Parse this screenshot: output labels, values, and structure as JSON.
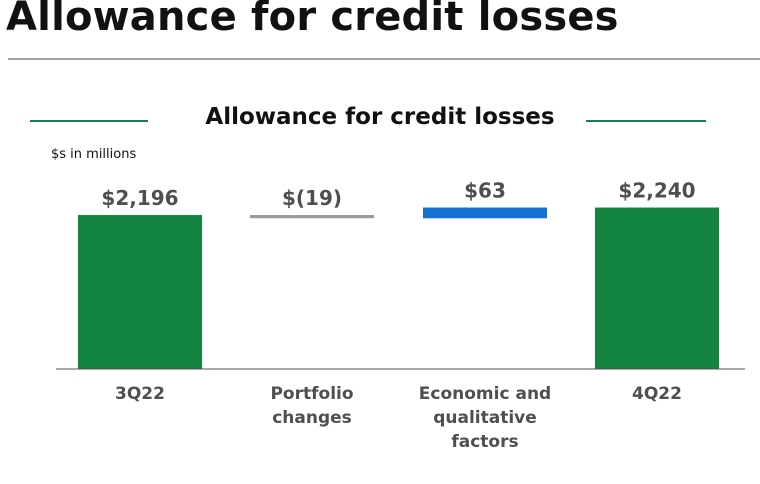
{
  "page": {
    "title": "Allowance for credit losses"
  },
  "chart_data": {
    "type": "bar",
    "subtype": "waterfall",
    "title": "Allowance for credit losses",
    "units_note": "$s in millions",
    "categories": [
      [
        "3Q22"
      ],
      [
        "Portfolio",
        "changes"
      ],
      [
        "Economic and",
        "qualitative",
        "factors"
      ],
      [
        "4Q22"
      ]
    ],
    "values": [
      2196,
      -19,
      63,
      2240
    ],
    "kinds": [
      "total",
      "delta",
      "delta",
      "total"
    ],
    "value_labels": [
      "$2,196",
      "$(19)",
      "$63",
      "$2,240"
    ],
    "ylim": [
      1290,
      2255
    ],
    "grid": false,
    "colors": {
      "total": "#12843f",
      "increase": "#1470d1",
      "decrease": "#9a9a9a",
      "axis": "#555555",
      "accent_line": "#1a7a5a"
    }
  }
}
